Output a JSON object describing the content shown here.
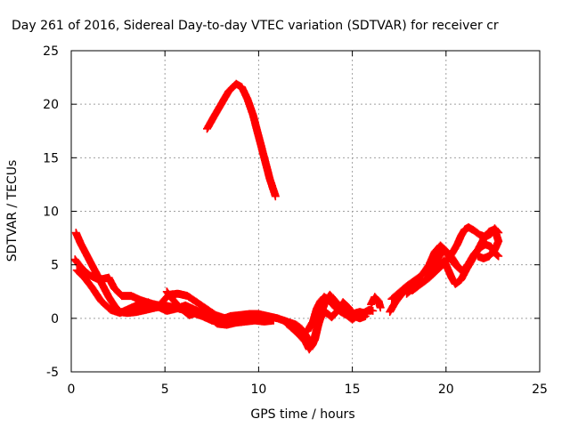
{
  "chart_data": {
    "type": "scatter",
    "title": "Day 261 of 2016, Sidereal Day-to-day VTEC variation (SDTVAR) for receiver cr",
    "xlabel": "GPS time / hours",
    "ylabel": "SDTVAR / TECUs",
    "xlim": [
      0,
      25
    ],
    "ylim": [
      -5,
      25
    ],
    "xticks": [
      0,
      5,
      10,
      15,
      20,
      25
    ],
    "yticks": [
      -5,
      0,
      5,
      10,
      15,
      20,
      25
    ],
    "grid": true,
    "marker": "plus",
    "color": "#ff0000",
    "tracks": [
      [
        [
          7.25,
          17.7
        ],
        [
          7.6,
          18.8
        ],
        [
          8.0,
          20.0
        ],
        [
          8.4,
          21.2
        ],
        [
          8.8,
          21.9
        ],
        [
          9.1,
          21.6
        ],
        [
          9.4,
          20.5
        ],
        [
          9.7,
          19.0
        ],
        [
          10.0,
          17.0
        ],
        [
          10.3,
          15.0
        ],
        [
          10.6,
          13.0
        ],
        [
          10.9,
          11.4
        ]
      ],
      [
        [
          0.25,
          8.0
        ],
        [
          0.5,
          7.0
        ],
        [
          0.8,
          6.0
        ],
        [
          1.1,
          5.0
        ],
        [
          1.4,
          4.0
        ],
        [
          1.7,
          3.0
        ],
        [
          2.0,
          2.0
        ],
        [
          2.3,
          1.2
        ],
        [
          2.6,
          0.6
        ],
        [
          3.0,
          0.5
        ],
        [
          3.5,
          0.6
        ],
        [
          4.0,
          0.8
        ],
        [
          4.5,
          1.0
        ],
        [
          5.0,
          1.2
        ],
        [
          5.5,
          1.0
        ],
        [
          6.0,
          0.8
        ],
        [
          6.5,
          0.5
        ],
        [
          7.0,
          0.2
        ],
        [
          7.5,
          -0.2
        ],
        [
          8.0,
          -0.4
        ]
      ],
      [
        [
          0.2,
          5.5
        ],
        [
          0.6,
          4.6
        ],
        [
          1.0,
          4.0
        ],
        [
          1.5,
          3.6
        ],
        [
          2.0,
          3.8
        ],
        [
          2.3,
          2.8
        ],
        [
          2.7,
          2.1
        ],
        [
          3.2,
          2.1
        ],
        [
          3.7,
          1.7
        ],
        [
          4.2,
          1.4
        ],
        [
          4.7,
          1.2
        ],
        [
          5.2,
          2.2
        ],
        [
          5.7,
          2.3
        ],
        [
          6.2,
          2.1
        ],
        [
          6.7,
          1.5
        ],
        [
          7.2,
          0.9
        ],
        [
          7.7,
          0.3
        ],
        [
          8.2,
          0.0
        ]
      ],
      [
        [
          0.3,
          4.5
        ],
        [
          0.7,
          3.8
        ],
        [
          1.1,
          2.9
        ],
        [
          1.6,
          1.6
        ],
        [
          2.1,
          0.8
        ],
        [
          2.6,
          0.5
        ],
        [
          3.1,
          0.9
        ],
        [
          3.6,
          1.3
        ],
        [
          4.1,
          1.5
        ],
        [
          4.6,
          1.1
        ],
        [
          5.1,
          0.7
        ],
        [
          5.6,
          0.9
        ],
        [
          6.1,
          1.2
        ],
        [
          6.6,
          0.8
        ],
        [
          7.1,
          0.4
        ],
        [
          7.6,
          0.1
        ]
      ],
      [
        [
          5.1,
          2.5
        ],
        [
          5.4,
          1.8
        ],
        [
          5.8,
          1.0
        ],
        [
          6.3,
          0.3
        ],
        [
          6.8,
          0.6
        ],
        [
          7.3,
          0.2
        ],
        [
          7.8,
          -0.5
        ],
        [
          8.3,
          -0.6
        ],
        [
          8.8,
          -0.4
        ],
        [
          9.3,
          -0.3
        ],
        [
          9.8,
          -0.2
        ],
        [
          10.3,
          -0.3
        ],
        [
          10.8,
          -0.2
        ]
      ],
      [
        [
          8.0,
          -0.1
        ],
        [
          8.5,
          0.2
        ],
        [
          9.0,
          0.3
        ],
        [
          9.5,
          0.4
        ],
        [
          10.0,
          0.4
        ],
        [
          10.5,
          0.2
        ],
        [
          11.0,
          0.0
        ],
        [
          11.5,
          -0.3
        ],
        [
          12.0,
          -0.6
        ],
        [
          12.3,
          -1.0
        ],
        [
          12.6,
          -1.8
        ],
        [
          12.8,
          -2.6
        ],
        [
          13.0,
          -2.0
        ],
        [
          13.2,
          -0.5
        ],
        [
          13.4,
          0.8
        ],
        [
          13.6,
          1.7
        ],
        [
          13.8,
          2.2
        ],
        [
          14.0,
          1.8
        ],
        [
          14.3,
          1.2
        ],
        [
          14.6,
          0.7
        ],
        [
          15.0,
          0.4
        ],
        [
          15.4,
          0.6
        ],
        [
          15.8,
          0.4
        ]
      ],
      [
        [
          11.5,
          -0.5
        ],
        [
          11.9,
          -1.1
        ],
        [
          12.2,
          -1.6
        ],
        [
          12.5,
          -2.2
        ],
        [
          12.7,
          -2.9
        ],
        [
          12.9,
          -2.4
        ],
        [
          13.1,
          -1.0
        ],
        [
          13.3,
          0.0
        ],
        [
          13.5,
          0.6
        ],
        [
          13.7,
          0.4
        ],
        [
          13.9,
          0.1
        ],
        [
          14.2,
          0.7
        ],
        [
          14.5,
          1.5
        ],
        [
          14.8,
          1.0
        ],
        [
          15.1,
          0.2
        ],
        [
          15.4,
          0.0
        ],
        [
          15.7,
          0.2
        ]
      ],
      [
        [
          12.6,
          -1.2
        ],
        [
          12.9,
          -0.3
        ],
        [
          13.1,
          0.9
        ],
        [
          13.3,
          1.6
        ],
        [
          13.5,
          2.0
        ],
        [
          13.8,
          1.6
        ],
        [
          14.1,
          1.0
        ],
        [
          14.4,
          0.6
        ],
        [
          14.7,
          0.3
        ],
        [
          15.0,
          -0.1
        ],
        [
          15.3,
          0.3
        ],
        [
          15.6,
          0.5
        ],
        [
          15.9,
          0.8
        ],
        [
          16.1,
          0.7
        ]
      ],
      [
        [
          16.0,
          1.3
        ],
        [
          16.2,
          2.0
        ],
        [
          16.4,
          1.6
        ],
        [
          16.5,
          1.0
        ]
      ],
      [
        [
          17.0,
          0.6
        ],
        [
          17.3,
          1.5
        ],
        [
          17.6,
          2.2
        ],
        [
          17.9,
          2.7
        ],
        [
          18.2,
          2.6
        ],
        [
          18.5,
          3.0
        ],
        [
          18.8,
          3.4
        ],
        [
          19.1,
          3.8
        ],
        [
          19.4,
          4.3
        ],
        [
          19.7,
          4.8
        ],
        [
          20.0,
          5.3
        ],
        [
          20.3,
          6.0
        ],
        [
          20.6,
          6.9
        ],
        [
          20.8,
          7.7
        ],
        [
          21.0,
          8.3
        ],
        [
          21.2,
          8.5
        ],
        [
          21.5,
          8.2
        ],
        [
          21.8,
          7.8
        ],
        [
          22.1,
          7.6
        ],
        [
          22.4,
          7.9
        ],
        [
          22.6,
          8.4
        ],
        [
          22.8,
          8.0
        ]
      ],
      [
        [
          17.1,
          1.8
        ],
        [
          17.5,
          2.4
        ],
        [
          17.9,
          3.0
        ],
        [
          18.3,
          3.5
        ],
        [
          18.7,
          4.0
        ],
        [
          19.1,
          5.0
        ],
        [
          19.4,
          6.2
        ],
        [
          19.7,
          6.8
        ],
        [
          20.0,
          6.3
        ],
        [
          20.3,
          5.7
        ],
        [
          20.6,
          4.9
        ],
        [
          20.9,
          4.4
        ],
        [
          21.2,
          5.1
        ],
        [
          21.5,
          6.0
        ],
        [
          21.8,
          6.6
        ],
        [
          22.1,
          6.9
        ],
        [
          22.4,
          6.7
        ],
        [
          22.6,
          6.1
        ],
        [
          22.8,
          5.8
        ]
      ],
      [
        [
          19.3,
          4.2
        ],
        [
          19.6,
          4.9
        ],
        [
          19.9,
          5.4
        ],
        [
          20.1,
          4.6
        ],
        [
          20.3,
          3.8
        ],
        [
          20.5,
          3.2
        ],
        [
          20.8,
          3.6
        ],
        [
          21.1,
          4.6
        ],
        [
          21.4,
          5.5
        ],
        [
          21.7,
          6.4
        ],
        [
          22.0,
          7.4
        ],
        [
          22.3,
          8.1
        ],
        [
          22.6,
          8.3
        ],
        [
          22.8,
          7.2
        ],
        [
          22.6,
          6.4
        ],
        [
          22.3,
          5.8
        ],
        [
          22.0,
          5.6
        ],
        [
          21.7,
          5.8
        ]
      ],
      [
        [
          17.9,
          2.3
        ],
        [
          18.3,
          2.9
        ],
        [
          18.7,
          3.3
        ],
        [
          19.0,
          3.7
        ],
        [
          19.3,
          4.6
        ],
        [
          19.6,
          5.7
        ],
        [
          19.9,
          6.4
        ],
        [
          20.2,
          5.7
        ],
        [
          20.5,
          5.0
        ],
        [
          20.8,
          4.5
        ]
      ]
    ]
  }
}
